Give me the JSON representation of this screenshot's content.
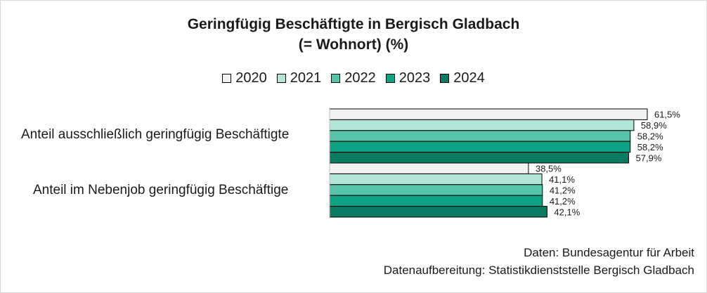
{
  "chart": {
    "title_line1": "Geringfügig Beschäftigte in Bergisch Gladbach",
    "title_line2": "(= Wohnort) (%)"
  },
  "source": {
    "line1": "Daten: Bundesagentur für Arbeit",
    "line2": "Datenaufbereitung: Statistikdienststelle Bergisch Gladbach"
  },
  "chart_data": {
    "type": "bar",
    "orientation": "horizontal",
    "title": "Geringfügig Beschäftigte in Bergisch Gladbach (= Wohnort) (%)",
    "categories": [
      "Anteil ausschließlich geringfügig Beschäftigte",
      "Anteil im Nebenjob geringfügig Beschäftige"
    ],
    "series": [
      {
        "name": "2020",
        "color": "#f2f2f2",
        "values": [
          61.5,
          38.5
        ],
        "labels": [
          "61,5%",
          "38,5%"
        ]
      },
      {
        "name": "2021",
        "color": "#b3e6d9",
        "values": [
          58.9,
          41.1
        ],
        "labels": [
          "58,9%",
          "41,1%"
        ]
      },
      {
        "name": "2022",
        "color": "#57c3a8",
        "values": [
          58.2,
          41.2
        ],
        "labels": [
          "58,2%",
          "41,2%"
        ]
      },
      {
        "name": "2023",
        "color": "#0fa383",
        "values": [
          58.2,
          41.2
        ],
        "labels": [
          "58,2%",
          "41,2%"
        ]
      },
      {
        "name": "2024",
        "color": "#0a7a62",
        "values": [
          57.9,
          42.1
        ],
        "labels": [
          "57,9%",
          "42,1%"
        ]
      }
    ],
    "xlim": [
      0,
      100
    ],
    "legend": "top",
    "grid": false
  }
}
